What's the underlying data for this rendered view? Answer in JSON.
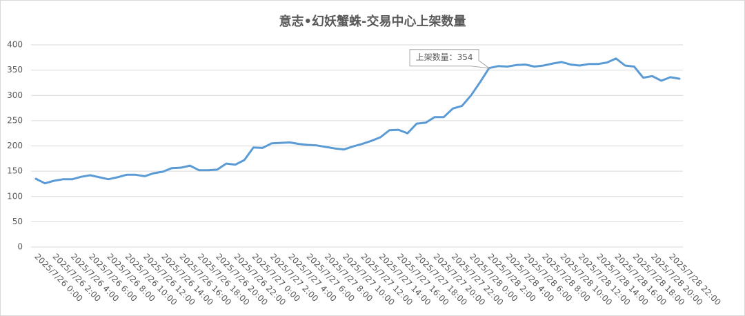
{
  "chart_data": {
    "type": "line",
    "title": "意志•幻妖蟹蛛-交易中心上架数量",
    "categories": [
      "2025/7/26 0:00",
      null,
      "2025/7/26 2:00",
      null,
      "2025/7/26 4:00",
      null,
      "2025/7/26 6:00",
      null,
      "2025/7/26 8:00",
      null,
      "2025/7/26 10:00",
      null,
      "2025/7/26 12:00",
      null,
      "2025/7/26 14:00",
      null,
      "2025/7/26 16:00",
      null,
      "2025/7/26 18:00",
      null,
      "2025/7/26 20:00",
      null,
      "2025/7/26 22:00",
      null,
      "2025/7/27 0:00",
      null,
      "2025/7/27 2:00",
      null,
      "2025/7/27 4:00",
      null,
      "2025/7/27 6:00",
      null,
      "2025/7/27 8:00",
      null,
      "2025/7/27 10:00",
      null,
      "2025/7/27 12:00",
      null,
      "2025/7/27 14:00",
      null,
      "2025/7/27 16:00",
      null,
      "2025/7/27 18:00",
      null,
      "2025/7/27 20:00",
      null,
      "2025/7/27 22:00",
      null,
      "2025/7/28 0:00",
      null,
      "2025/7/28 2:00",
      null,
      "2025/7/28 4:00",
      null,
      "2025/7/28 6:00",
      null,
      "2025/7/28 8:00",
      null,
      "2025/7/28 10:00",
      null,
      "2025/7/28 12:00",
      null,
      "2025/7/28 14:00",
      null,
      "2025/7/28 16:00",
      null,
      "2025/7/28 18:00",
      null,
      "2025/7/28 20:00",
      null,
      "2025/7/28 22:00",
      null
    ],
    "values": [
      135,
      126,
      131,
      134,
      134,
      139,
      142,
      138,
      134,
      138,
      143,
      143,
      140,
      146,
      149,
      156,
      157,
      161,
      152,
      152,
      153,
      165,
      163,
      172,
      197,
      196,
      205,
      206,
      207,
      204,
      202,
      201,
      198,
      195,
      193,
      199,
      204,
      210,
      217,
      231,
      232,
      225,
      244,
      246,
      257,
      257,
      274,
      279,
      300,
      326,
      354,
      358,
      357,
      360,
      361,
      357,
      359,
      363,
      366,
      361,
      359,
      362,
      362,
      365,
      373,
      359,
      357,
      335,
      338,
      329,
      336,
      333
    ],
    "color": "#5b9bd5",
    "ylim": [
      0,
      400
    ],
    "yticks": [
      0,
      50,
      100,
      150,
      200,
      250,
      300,
      350,
      400
    ],
    "grid": true,
    "annotation": {
      "text": "上架数量：354",
      "index": 50
    }
  }
}
